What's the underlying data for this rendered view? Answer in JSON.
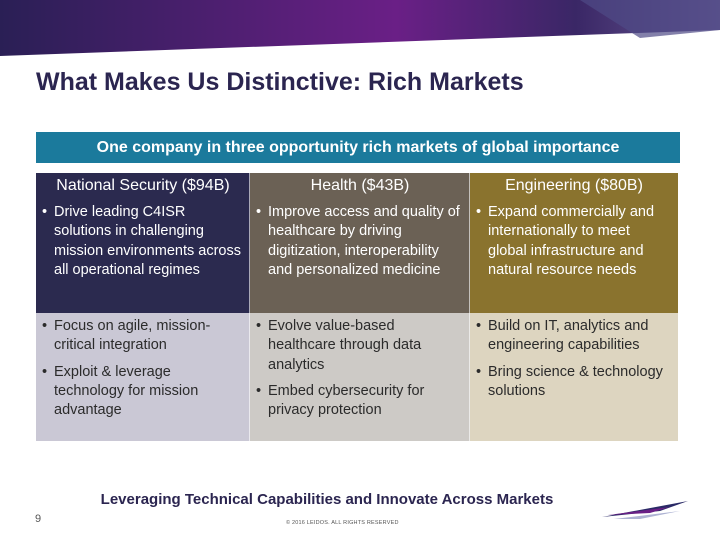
{
  "slide": {
    "title": "What Makes Us Distinctive: Rich Markets",
    "subtitle": "One company in three opportunity rich markets of global importance",
    "footer_tagline": "Leveraging Technical Capabilities and Innovate Across Markets",
    "page_number": "9",
    "copyright": "© 2016 LEIDOS. ALL RIGHTS RESERVED"
  },
  "colors": {
    "banner_purple": "#5a1f7a",
    "subtitle_teal": "#1b7a9c",
    "national_dark": "#2b2a4f",
    "national_light": "#cac8d5",
    "health_dark": "#6b6155",
    "health_light": "#cdcac6",
    "engineering_dark": "#8a732e",
    "engineering_light": "#ddd5c0",
    "title_navy": "#2b2550"
  },
  "columns": [
    {
      "header": "National Security ($94B)",
      "top_bullets": [
        "Drive leading C4ISR solutions in challenging mission environments across all operational regimes"
      ],
      "bottom_bullets": [
        "Focus on agile, mission-critical integration",
        "Exploit & leverage technology for mission advantage"
      ]
    },
    {
      "header": "Health ($43B)",
      "top_bullets": [
        "Improve access and quality of healthcare by driving digitization, interoperability and personalized medicine"
      ],
      "bottom_bullets": [
        "Evolve value-based healthcare through data analytics",
        "Embed cybersecurity for privacy protection"
      ]
    },
    {
      "header": "Engineering ($80B)",
      "top_bullets": [
        "Expand commercially and internationally to meet global infrastructure and natural resource needs"
      ],
      "bottom_bullets": [
        "Build on IT, analytics and engineering capabilities",
        "Bring science & technology solutions"
      ]
    }
  ],
  "logo": {
    "icon": "leidos-swoosh-logo"
  }
}
